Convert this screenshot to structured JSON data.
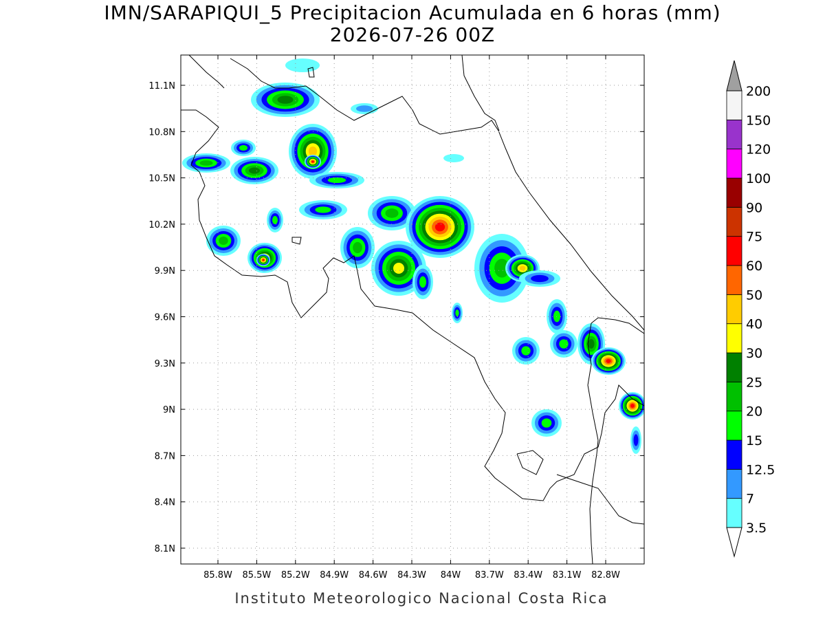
{
  "title": "IMN/SARAPIQUI_5 Precipitacion Acumulada en 6 horas (mm)",
  "subtitle": "2026-07-26 00Z",
  "footer": "Instituto Meteorologico Nacional Costa Rica",
  "lat_labels": [
    "11.1N",
    "10.8N",
    "10.5N",
    "10.2N",
    "9.9N",
    "9.6N",
    "9.3N",
    "9N",
    "8.7N",
    "8.4N",
    "8.1N"
  ],
  "lon_labels": [
    "85.8W",
    "85.5W",
    "85.2W",
    "84.9W",
    "84.6W",
    "84.3W",
    "84W",
    "83.7W",
    "83.4W",
    "83.1W",
    "82.8W"
  ],
  "colorbar": {
    "labels": [
      "3.5",
      "7",
      "12.5",
      "15",
      "20",
      "25",
      "30",
      "40",
      "50",
      "60",
      "75",
      "90",
      "100",
      "120",
      "150",
      "200"
    ],
    "colors": [
      "#66ffff",
      "#3399ff",
      "#0000ff",
      "#00ff00",
      "#00c000",
      "#008000",
      "#ffff00",
      "#ffcc00",
      "#ff6600",
      "#ff0000",
      "#cc3300",
      "#990000",
      "#ff00ff",
      "#9933cc",
      "#f5f5f5"
    ],
    "over_color": "#a0a0a0",
    "under_color": "#ffffff"
  }
}
